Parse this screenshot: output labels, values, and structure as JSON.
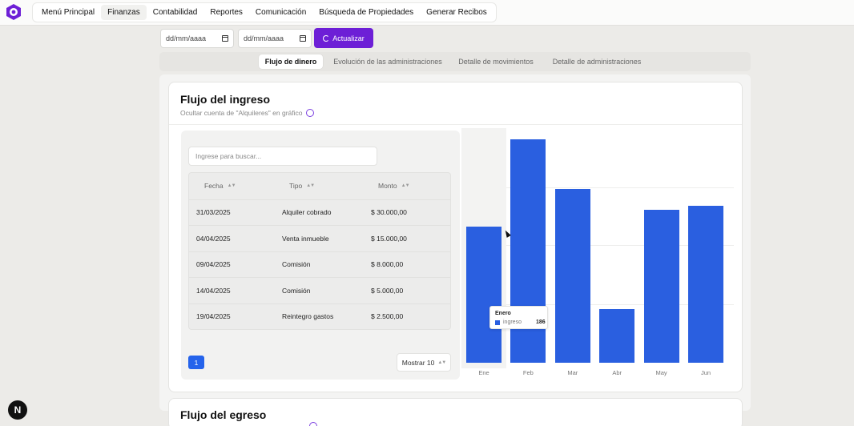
{
  "nav": {
    "items": [
      "Menú Principal",
      "Finanzas",
      "Contabilidad",
      "Reportes",
      "Comunicación",
      "Búsqueda de Propiedades",
      "Generar Recibos"
    ],
    "active": "Finanzas"
  },
  "filters": {
    "date_from_placeholder": "dd/mm/aaaa",
    "date_to_placeholder": "dd/mm/aaaa",
    "update_label": "Actualizar"
  },
  "tabs": [
    "Flujo de dinero",
    "Evolución de las administraciones",
    "Detalle de movimientos",
    "Detalle de administraciones"
  ],
  "income": {
    "title": "Flujo del ingreso",
    "toggle_label": "Ocultar cuenta de \"Alquileres\" en gráfico",
    "search_placeholder": "Ingrese para buscar...",
    "columns": [
      "Fecha",
      "Tipo",
      "Monto"
    ],
    "rows": [
      {
        "fecha": "31/03/2025",
        "tipo": "Alquiler cobrado",
        "monto": "$ 30.000,00"
      },
      {
        "fecha": "04/04/2025",
        "tipo": "Venta inmueble",
        "monto": "$ 15.000,00"
      },
      {
        "fecha": "09/04/2025",
        "tipo": "Comisión",
        "monto": "$ 8.000,00"
      },
      {
        "fecha": "14/04/2025",
        "tipo": "Comisión",
        "monto": "$ 5.000,00"
      },
      {
        "fecha": "19/04/2025",
        "tipo": "Reintegro gastos",
        "monto": "$ 2.500,00"
      }
    ],
    "page": "1",
    "page_size_label": "Mostrar 10"
  },
  "chart_data": {
    "type": "bar",
    "categories": [
      "Ene",
      "Feb",
      "Mar",
      "Abr",
      "May",
      "Jun"
    ],
    "series": [
      {
        "name": "ingreso",
        "values": [
          186,
          305,
          237,
          73,
          209,
          214
        ]
      }
    ],
    "tooltip": {
      "category": "Enero",
      "series": "ingreso",
      "value": "186"
    },
    "color": "#2a5fe0",
    "ylim": [
      0,
      320
    ]
  },
  "expense": {
    "title": "Flujo del egreso"
  },
  "badge": "N",
  "colors": {
    "accent": "#6d1fd6",
    "bar": "#2a5fe0",
    "page_button": "#2563eb"
  }
}
